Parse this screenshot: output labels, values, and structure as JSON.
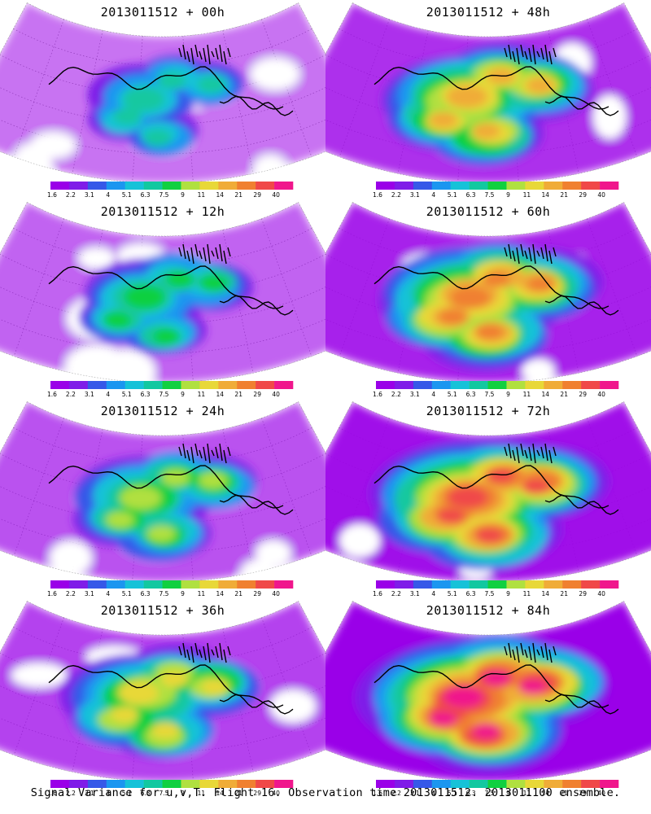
{
  "panels": [
    {
      "id": "p00",
      "title": "2013011512 + 00h",
      "lead_hours": 0
    },
    {
      "id": "p48",
      "title": "2013011512 + 48h",
      "lead_hours": 48
    },
    {
      "id": "p12",
      "title": "2013011512 + 12h",
      "lead_hours": 12
    },
    {
      "id": "p60",
      "title": "2013011512 + 60h",
      "lead_hours": 60
    },
    {
      "id": "p24",
      "title": "2013011512 + 24h",
      "lead_hours": 24
    },
    {
      "id": "p72",
      "title": "2013011512 + 72h",
      "lead_hours": 72
    },
    {
      "id": "p36",
      "title": "2013011512 + 36h",
      "lead_hours": 36
    },
    {
      "id": "p84",
      "title": "2013011512 + 84h",
      "lead_hours": 84
    }
  ],
  "colorbar": {
    "levels": [
      "1.6",
      "2.2",
      "3.1",
      "4",
      "5.1",
      "6.3",
      "7.5",
      "9",
      "11",
      "14",
      "21",
      "29",
      "40"
    ],
    "colors": [
      "#9a00e8",
      "#7f1ce8",
      "#3658e8",
      "#1b96f0",
      "#16c2d8",
      "#12c8a0",
      "#10d040",
      "#b0e040",
      "#e8d838",
      "#f0ac38",
      "#f08030",
      "#f04848",
      "#f0168c"
    ]
  },
  "footer": "Signal Variance for u,v,T. Flight 16. Observation time 2013011512. 2013011100 ensemble."
}
